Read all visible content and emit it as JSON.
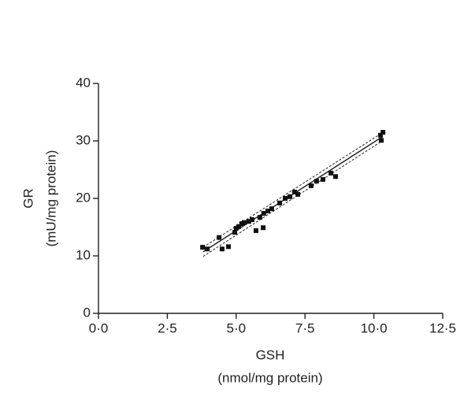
{
  "chart_data": {
    "type": "scatter",
    "x_label": [
      "GSH",
      "(nmol/mg protein)"
    ],
    "y_label": [
      "GR",
      "(mU/mg protein)"
    ],
    "x": [
      3.78,
      3.95,
      4.38,
      4.49,
      4.72,
      4.95,
      5.0,
      5.09,
      5.2,
      5.29,
      5.46,
      5.58,
      5.72,
      5.86,
      5.98,
      6.0,
      6.15,
      6.29,
      6.58,
      6.78,
      6.95,
      7.12,
      7.24,
      7.72,
      7.92,
      8.15,
      8.44,
      8.61,
      10.24,
      10.33,
      10.27
    ],
    "values": [
      11.5,
      11.2,
      13.2,
      11.2,
      11.6,
      14.1,
      14.8,
      15.1,
      15.6,
      15.8,
      16.0,
      16.3,
      14.4,
      16.7,
      14.9,
      17.4,
      17.8,
      18.2,
      19.2,
      20.0,
      20.3,
      21.1,
      20.7,
      22.2,
      23.0,
      23.3,
      24.4,
      23.8,
      31.0,
      31.5,
      30.1
    ],
    "color": "#111111",
    "fit": {
      "x": [
        3.8,
        10.3
      ],
      "y": [
        10.7,
        30.7
      ]
    },
    "ci_lower": {
      "x": [
        3.8,
        10.3
      ],
      "y": [
        9.9,
        30.0
      ]
    },
    "ci_upper": {
      "x": [
        3.8,
        10.3
      ],
      "y": [
        11.5,
        31.4
      ]
    },
    "xlim": [
      0,
      12.5
    ],
    "ylim": [
      0,
      40
    ],
    "xticks": [
      {
        "value": 0,
        "label": "0·0"
      },
      {
        "value": 2.5,
        "label": "2·5"
      },
      {
        "value": 5,
        "label": "5·0"
      },
      {
        "value": 7.5,
        "label": "7·5"
      },
      {
        "value": 10,
        "label": "10·0"
      },
      {
        "value": 12.5,
        "label": "12·5"
      }
    ],
    "yticks": [
      0,
      10,
      20,
      30,
      40
    ]
  }
}
